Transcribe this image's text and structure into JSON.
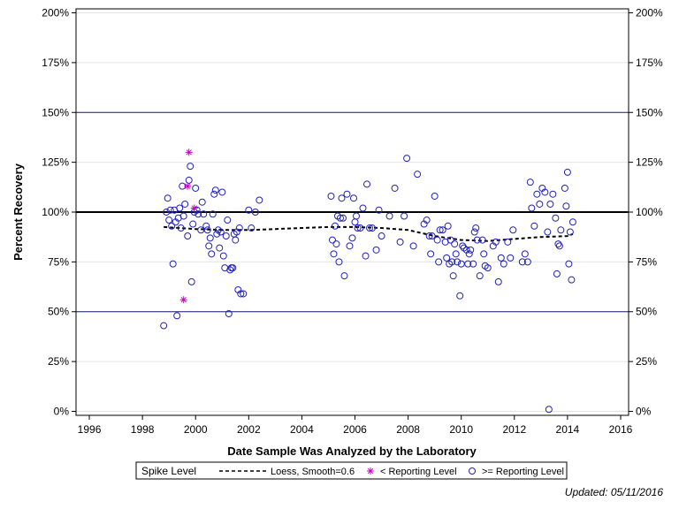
{
  "chart_data": {
    "type": "scatter",
    "xlabel": "Date Sample Was Analyzed by the Laboratory",
    "ylabel": "Percent Recovery",
    "xlim": [
      1995.5,
      2016.3
    ],
    "ylim": [
      -2,
      202
    ],
    "x_ticks": [
      1996,
      1998,
      2000,
      2002,
      2004,
      2006,
      2008,
      2010,
      2012,
      2014,
      2016
    ],
    "x_tick_labels": [
      "1996",
      "1998",
      "2000",
      "2002",
      "2004",
      "2006",
      "2008",
      "2010",
      "2012",
      "2014",
      "2016"
    ],
    "y_ticks": [
      0,
      25,
      50,
      75,
      100,
      125,
      150,
      175,
      200
    ],
    "y_tick_labels": [
      "0%",
      "25%",
      "50%",
      "75%",
      "100%",
      "125%",
      "150%",
      "175%",
      "200%"
    ],
    "reference_lines": [
      {
        "y": 100,
        "style": "bold",
        "color": "#000000"
      },
      {
        "y": 50,
        "style": "thin",
        "color": "#1a1a6e"
      },
      {
        "y": 150,
        "style": "thin",
        "color": "#1a1a6e"
      }
    ],
    "grid": true,
    "legend": {
      "title": "Spike Level",
      "placement": "bottom-center",
      "entries": [
        {
          "label": "Loess, Smooth=0.6",
          "symbol": "dashed-line"
        },
        {
          "label": "< Reporting Level",
          "symbol": "star"
        },
        {
          "label": ">= Reporting Level",
          "symbol": "circle"
        }
      ]
    },
    "series": [
      {
        "name": ">= Reporting Level",
        "marker": "circle",
        "color": "#2222bb",
        "points": [
          [
            1998.8,
            43
          ],
          [
            1998.9,
            100
          ],
          [
            1998.95,
            107
          ],
          [
            1999.0,
            96
          ],
          [
            1999.05,
            101
          ],
          [
            1999.1,
            93
          ],
          [
            1999.15,
            74
          ],
          [
            1999.2,
            101
          ],
          [
            1999.25,
            95
          ],
          [
            1999.3,
            48
          ],
          [
            1999.35,
            97
          ],
          [
            1999.4,
            102
          ],
          [
            1999.45,
            92
          ],
          [
            1999.5,
            113
          ],
          [
            1999.55,
            98
          ],
          [
            1999.6,
            104
          ],
          [
            1999.7,
            88
          ],
          [
            1999.75,
            116
          ],
          [
            1999.8,
            123
          ],
          [
            1999.85,
            65
          ],
          [
            1999.9,
            94
          ],
          [
            1999.95,
            100
          ],
          [
            2000.0,
            112
          ],
          [
            2000.05,
            101
          ],
          [
            2000.1,
            99
          ],
          [
            2000.2,
            91
          ],
          [
            2000.25,
            105
          ],
          [
            2000.3,
            99
          ],
          [
            2000.4,
            93
          ],
          [
            2000.45,
            91
          ],
          [
            2000.5,
            83
          ],
          [
            2000.55,
            87
          ],
          [
            2000.6,
            79
          ],
          [
            2000.65,
            99
          ],
          [
            2000.7,
            109
          ],
          [
            2000.75,
            111
          ],
          [
            2000.8,
            89
          ],
          [
            2000.85,
            91
          ],
          [
            2000.9,
            82
          ],
          [
            2000.95,
            90
          ],
          [
            2001.0,
            110
          ],
          [
            2001.05,
            78
          ],
          [
            2001.1,
            72
          ],
          [
            2001.15,
            88
          ],
          [
            2001.2,
            96
          ],
          [
            2001.25,
            49
          ],
          [
            2001.3,
            71
          ],
          [
            2001.35,
            72
          ],
          [
            2001.4,
            72
          ],
          [
            2001.45,
            89
          ],
          [
            2001.5,
            86
          ],
          [
            2001.55,
            90
          ],
          [
            2001.6,
            61
          ],
          [
            2001.65,
            92
          ],
          [
            2001.7,
            59
          ],
          [
            2001.8,
            59
          ],
          [
            2002.0,
            101
          ],
          [
            2002.1,
            92
          ],
          [
            2002.25,
            100
          ],
          [
            2002.4,
            106
          ],
          [
            2005.1,
            108
          ],
          [
            2005.15,
            86
          ],
          [
            2005.2,
            79
          ],
          [
            2005.25,
            93
          ],
          [
            2005.3,
            84
          ],
          [
            2005.35,
            98
          ],
          [
            2005.4,
            75
          ],
          [
            2005.45,
            97
          ],
          [
            2005.5,
            107
          ],
          [
            2005.55,
            97
          ],
          [
            2005.6,
            68
          ],
          [
            2005.7,
            109
          ],
          [
            2005.8,
            83
          ],
          [
            2005.9,
            87
          ],
          [
            2005.95,
            107
          ],
          [
            2006.0,
            95
          ],
          [
            2006.05,
            98
          ],
          [
            2006.1,
            92
          ],
          [
            2006.2,
            92
          ],
          [
            2006.3,
            102
          ],
          [
            2006.4,
            78
          ],
          [
            2006.45,
            114
          ],
          [
            2006.55,
            92
          ],
          [
            2006.65,
            92
          ],
          [
            2006.8,
            81
          ],
          [
            2006.9,
            101
          ],
          [
            2007.0,
            88
          ],
          [
            2007.3,
            98
          ],
          [
            2007.5,
            112
          ],
          [
            2007.7,
            85
          ],
          [
            2007.85,
            98
          ],
          [
            2007.95,
            127
          ],
          [
            2008.2,
            83
          ],
          [
            2008.35,
            119
          ],
          [
            2008.6,
            94
          ],
          [
            2008.7,
            96
          ],
          [
            2008.8,
            88
          ],
          [
            2008.85,
            79
          ],
          [
            2008.9,
            88
          ],
          [
            2009.0,
            108
          ],
          [
            2009.1,
            86
          ],
          [
            2009.15,
            75
          ],
          [
            2009.2,
            91
          ],
          [
            2009.3,
            91
          ],
          [
            2009.4,
            85
          ],
          [
            2009.45,
            77
          ],
          [
            2009.5,
            93
          ],
          [
            2009.55,
            74
          ],
          [
            2009.6,
            86
          ],
          [
            2009.65,
            75
          ],
          [
            2009.7,
            68
          ],
          [
            2009.75,
            84
          ],
          [
            2009.8,
            79
          ],
          [
            2009.85,
            75
          ],
          [
            2009.95,
            58
          ],
          [
            2010.0,
            74
          ],
          [
            2010.05,
            83
          ],
          [
            2010.1,
            82
          ],
          [
            2010.2,
            81
          ],
          [
            2010.25,
            74
          ],
          [
            2010.3,
            79
          ],
          [
            2010.35,
            81
          ],
          [
            2010.45,
            74
          ],
          [
            2010.5,
            90
          ],
          [
            2010.55,
            92
          ],
          [
            2010.6,
            86
          ],
          [
            2010.7,
            68
          ],
          [
            2010.8,
            86
          ],
          [
            2010.85,
            79
          ],
          [
            2010.9,
            73
          ],
          [
            2011.0,
            72
          ],
          [
            2011.2,
            83
          ],
          [
            2011.3,
            85
          ],
          [
            2011.4,
            65
          ],
          [
            2011.5,
            77
          ],
          [
            2011.6,
            74
          ],
          [
            2011.75,
            85
          ],
          [
            2011.85,
            77
          ],
          [
            2011.95,
            91
          ],
          [
            2012.3,
            75
          ],
          [
            2012.4,
            79
          ],
          [
            2012.5,
            75
          ],
          [
            2012.6,
            115
          ],
          [
            2012.65,
            102
          ],
          [
            2012.75,
            93
          ],
          [
            2012.85,
            109
          ],
          [
            2012.95,
            104
          ],
          [
            2013.05,
            112
          ],
          [
            2013.15,
            110
          ],
          [
            2013.25,
            90
          ],
          [
            2013.3,
            1
          ],
          [
            2013.35,
            104
          ],
          [
            2013.45,
            109
          ],
          [
            2013.55,
            97
          ],
          [
            2013.6,
            69
          ],
          [
            2013.65,
            84
          ],
          [
            2013.7,
            83
          ],
          [
            2013.75,
            91
          ],
          [
            2013.9,
            112
          ],
          [
            2013.95,
            103
          ],
          [
            2014.0,
            120
          ],
          [
            2014.05,
            74
          ],
          [
            2014.1,
            90
          ],
          [
            2014.15,
            66
          ],
          [
            2014.2,
            95
          ]
        ]
      },
      {
        "name": "< Reporting Level",
        "marker": "star",
        "color": "#cc00cc",
        "points": [
          [
            1999.55,
            56
          ],
          [
            1999.7,
            113
          ],
          [
            1999.75,
            130
          ],
          [
            1999.95,
            102
          ]
        ]
      },
      {
        "name": "Loess, Smooth=0.6",
        "marker": "dashed-line",
        "color": "#000000",
        "points": [
          [
            1998.8,
            92.5
          ],
          [
            2000.0,
            91.5
          ],
          [
            2001.0,
            91
          ],
          [
            2002.0,
            91
          ],
          [
            2003.0,
            91.5
          ],
          [
            2004.0,
            92
          ],
          [
            2005.0,
            92.5
          ],
          [
            2006.0,
            92.5
          ],
          [
            2007.0,
            92
          ],
          [
            2008.0,
            91
          ],
          [
            2009.0,
            88
          ],
          [
            2010.0,
            86
          ],
          [
            2011.0,
            85.5
          ],
          [
            2012.0,
            86.5
          ],
          [
            2013.0,
            87.5
          ],
          [
            2014.0,
            88
          ],
          [
            2014.2,
            89
          ]
        ]
      }
    ]
  },
  "footer": {
    "updated": "Updated: 05/11/2016"
  }
}
